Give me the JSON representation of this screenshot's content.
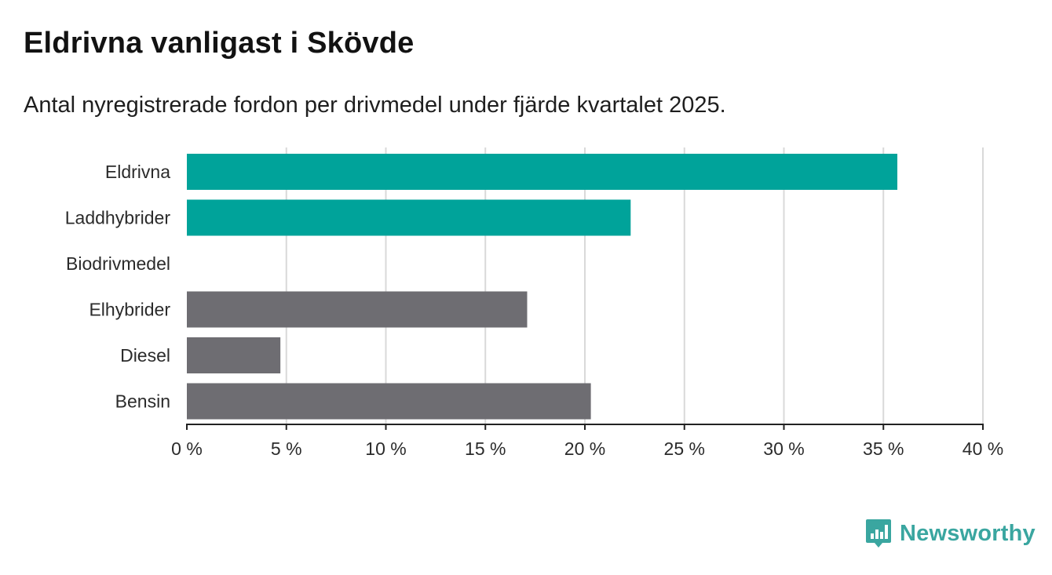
{
  "header": {
    "title": "Eldrivna vanligast i Skövde",
    "subtitle": "Antal nyregistrerade fordon per drivmedel under fjärde kvartalet 2025."
  },
  "brand": {
    "name": "Newsworthy",
    "icon": "newsworthy-logo-icon",
    "color": "#3aa6a0"
  },
  "colors": {
    "highlight": "#00a39a",
    "default": "#6e6d72",
    "grid": "#d9d9d9",
    "axis": "#222222"
  },
  "chart_data": {
    "type": "bar",
    "orientation": "horizontal",
    "title": "Eldrivna vanligast i Skövde",
    "subtitle": "Antal nyregistrerade fordon per drivmedel under fjärde kvartalet 2025.",
    "xlabel": "",
    "ylabel": "",
    "unit": "%",
    "xlim": [
      0,
      40
    ],
    "grid": true,
    "categories": [
      "Eldrivna",
      "Laddhybrider",
      "Biodrivmedel",
      "Elhybrider",
      "Diesel",
      "Bensin"
    ],
    "values": [
      35.7,
      22.3,
      0,
      17.1,
      4.7,
      20.3
    ],
    "bar_colors": [
      "#00a39a",
      "#00a39a",
      "#00a39a",
      "#6e6d72",
      "#6e6d72",
      "#6e6d72"
    ],
    "ticks": [
      0,
      5,
      10,
      15,
      20,
      25,
      30,
      35,
      40
    ],
    "tick_labels": [
      "0 %",
      "5 %",
      "10 %",
      "15 %",
      "20 %",
      "25 %",
      "30 %",
      "35 %",
      "40 %"
    ]
  }
}
